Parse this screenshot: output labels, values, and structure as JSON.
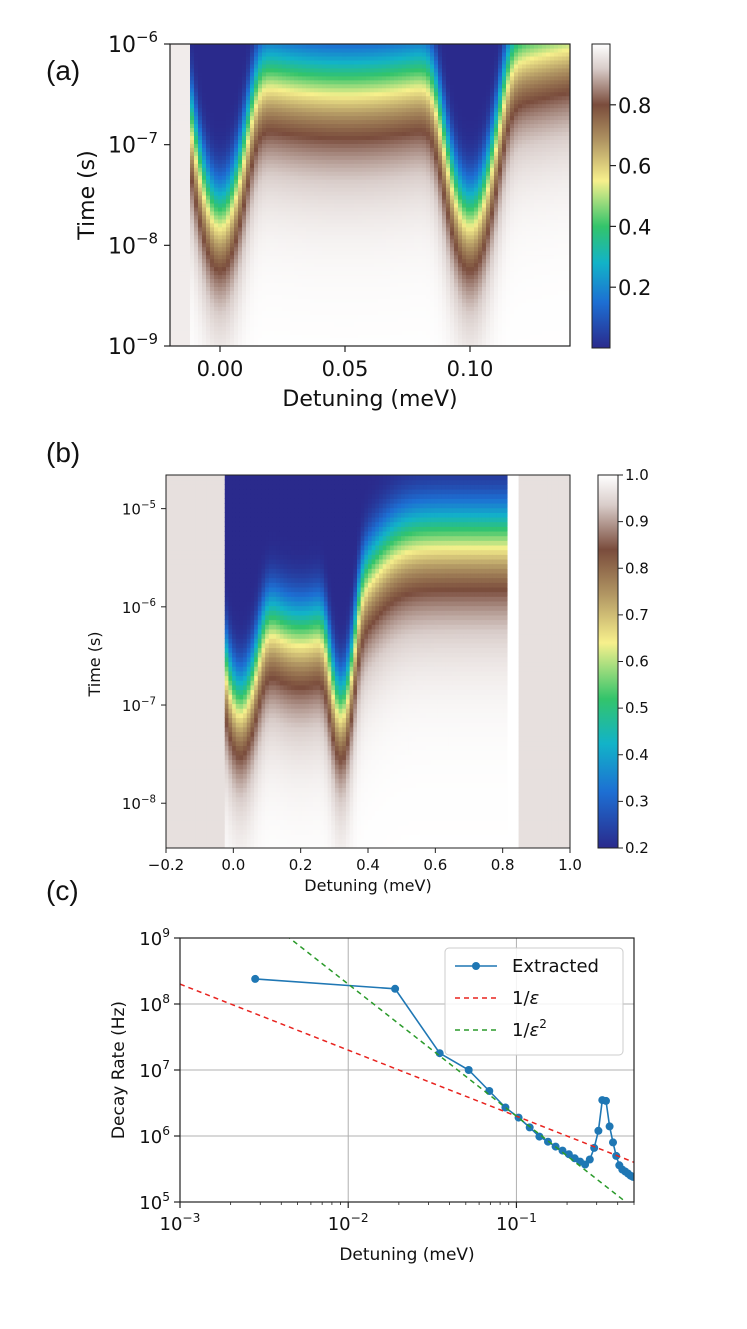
{
  "chart_data": [
    {
      "panel": "(a)",
      "type": "heatmap",
      "title": "",
      "xlabel": "Detuning (meV)",
      "ylabel": "Time (s)",
      "xlim": [
        -0.02,
        0.14
      ],
      "yscale": "log",
      "ylim": [
        1e-09,
        1e-06
      ],
      "xticks": [
        0.0,
        0.05,
        0.1
      ],
      "xtick_labels": [
        "0.00",
        "0.05",
        "0.10"
      ],
      "ytick_labels": [
        {
          "base": "10",
          "exp": "−9"
        },
        {
          "base": "10",
          "exp": "−8"
        },
        {
          "base": "10",
          "exp": "−7"
        },
        {
          "base": "10",
          "exp": "−6"
        }
      ],
      "colorbar": {
        "range": [
          0.0,
          1.0
        ],
        "ticks": [
          0.2,
          0.4,
          0.6,
          0.8
        ],
        "tick_labels": [
          "0.2",
          "0.4",
          "0.6",
          "0.8"
        ],
        "colormap": "terrain"
      },
      "resonances_meV": [
        0.0,
        0.1
      ],
      "description_values": "Population decays from 1 to ~0 with time; fast decay near detuning 0.00 and 0.10 meV"
    },
    {
      "panel": "(b)",
      "type": "heatmap",
      "title": "",
      "xlabel": "Detuning (meV)",
      "ylabel": "Time (s)",
      "xlim": [
        -0.2,
        1.0
      ],
      "yscale": "log",
      "ylim": [
        3.5e-09,
        2.2e-05
      ],
      "xticks": [
        -0.2,
        0.0,
        0.2,
        0.4,
        0.6,
        0.8,
        1.0
      ],
      "xtick_labels": [
        "−0.2",
        "0.0",
        "0.2",
        "0.4",
        "0.6",
        "0.8",
        "1.0"
      ],
      "ytick_labels": [
        {
          "base": "10",
          "exp": "−8"
        },
        {
          "base": "10",
          "exp": "−7"
        },
        {
          "base": "10",
          "exp": "−6"
        },
        {
          "base": "10",
          "exp": "−5"
        }
      ],
      "colorbar": {
        "range": [
          0.2,
          1.0
        ],
        "ticks": [
          0.2,
          0.3,
          0.4,
          0.5,
          0.6,
          0.7,
          0.8,
          0.9,
          1.0
        ],
        "tick_labels": [
          "0.2",
          "0.3",
          "0.4",
          "0.5",
          "0.6",
          "0.7",
          "0.8",
          "0.9",
          "1.0"
        ],
        "colormap": "terrain"
      },
      "resonances_meV": [
        0.02,
        0.32
      ]
    },
    {
      "panel": "(c)",
      "type": "line",
      "title": "",
      "xlabel": "Detuning (meV)",
      "ylabel": "Decay Rate (Hz)",
      "xscale": "log",
      "yscale": "log",
      "xlim": [
        0.001,
        0.5
      ],
      "ylim": [
        100000.0,
        1000000000.0
      ],
      "grid": true,
      "legend_position": "top-right",
      "xtick_labels": [
        {
          "base": "10",
          "exp": "−3"
        },
        {
          "base": "10",
          "exp": "−2"
        },
        {
          "base": "10",
          "exp": "−1"
        }
      ],
      "ytick_labels": [
        {
          "base": "10",
          "exp": "5"
        },
        {
          "base": "10",
          "exp": "6"
        },
        {
          "base": "10",
          "exp": "7"
        },
        {
          "base": "10",
          "exp": "8"
        },
        {
          "base": "10",
          "exp": "9"
        }
      ],
      "series": [
        {
          "name": "Extracted",
          "color": "#1f77b4",
          "style": "line-with-markers",
          "x": [
            0.0028,
            0.019,
            0.035,
            0.052,
            0.069,
            0.086,
            0.103,
            0.12,
            0.137,
            0.154,
            0.171,
            0.188,
            0.205,
            0.222,
            0.239,
            0.256,
            0.273,
            0.29,
            0.307,
            0.324,
            0.341,
            0.358,
            0.375,
            0.392,
            0.409,
            0.426,
            0.443,
            0.46,
            0.477,
            0.494
          ],
          "y": [
            240000000.0,
            170000000.0,
            18000000.0,
            10000000.0,
            4800000.0,
            2700000.0,
            1900000.0,
            1350000.0,
            980000.0,
            820000.0,
            690000.0,
            600000.0,
            530000.0,
            460000.0,
            410000.0,
            370000.0,
            440000.0,
            660000.0,
            1200000.0,
            3500000.0,
            3400000.0,
            1400000.0,
            800000.0,
            500000.0,
            360000.0,
            310000.0,
            290000.0,
            270000.0,
            250000.0,
            240000.0
          ]
        },
        {
          "name": "1/ε",
          "legend_math": {
            "base": "1/",
            "var": "ε",
            "exp": ""
          },
          "color": "#d62728",
          "style": "dashed",
          "formula": "y = 2.0e5 / x",
          "x": [
            0.001,
            0.5
          ],
          "y": [
            200000000.0,
            400000.0
          ]
        },
        {
          "name": "1/ε²",
          "legend_math": {
            "base": "1/",
            "var": "ε",
            "exp": "2"
          },
          "color": "#2ca02c",
          "style": "dashed",
          "formula": "y = 2.0e4 / x^2",
          "x": [
            0.0045,
            0.45
          ],
          "y": [
            1000000000.0,
            100000.0
          ]
        }
      ]
    }
  ],
  "panel_labels": [
    "(a)",
    "(b)",
    "(c)"
  ],
  "colorbar_a_labels": [
    "0.8",
    "0.6",
    "0.4",
    "0.2"
  ],
  "colorbar_b_labels": [
    "1.0",
    "0.9",
    "0.8",
    "0.7",
    "0.6",
    "0.5",
    "0.4",
    "0.3",
    "0.2"
  ],
  "colors": {
    "axis": "#222222",
    "grid": "#b0b0b0",
    "extracted": "#1f77b4",
    "inv_eps": "#e8231f",
    "inv_eps2": "#2a9a2a"
  }
}
